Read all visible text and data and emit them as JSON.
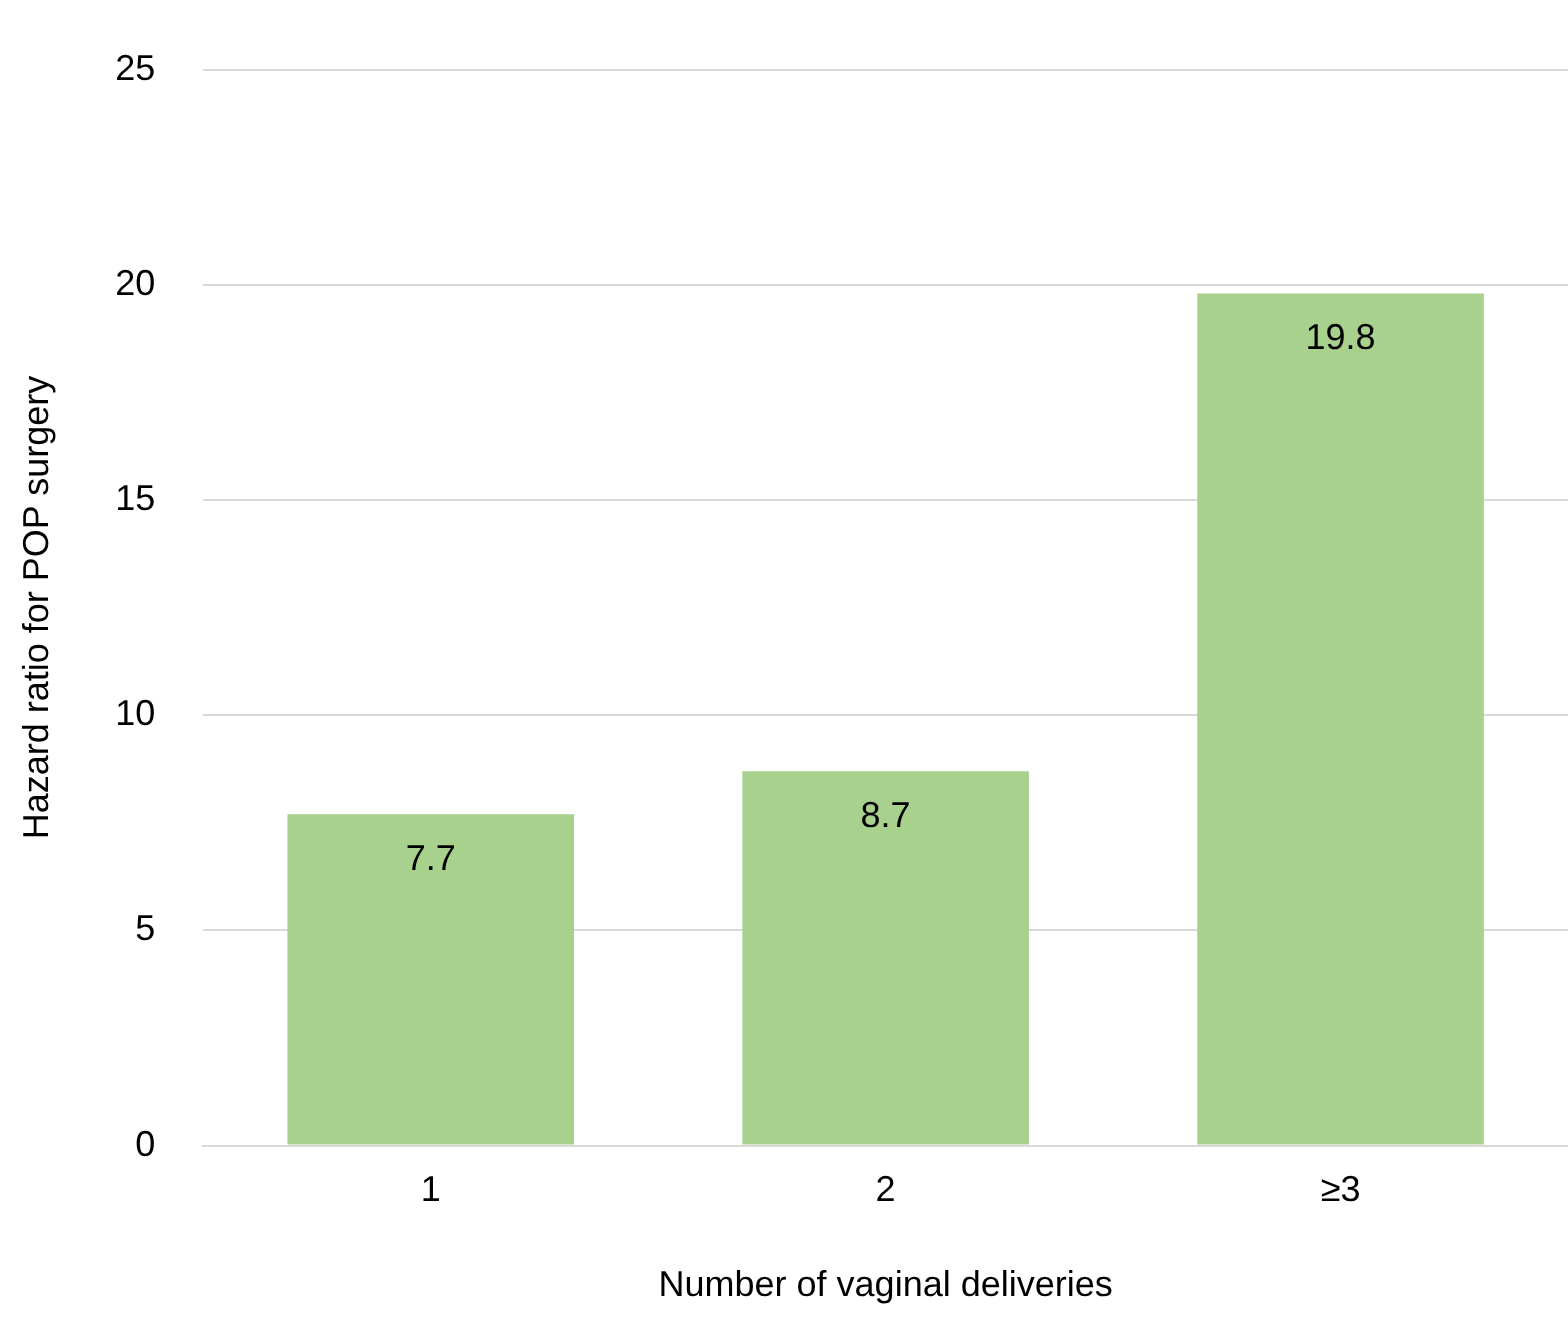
{
  "chart_data": {
    "type": "bar",
    "xlabel": "Number of vaginal deliveries",
    "ylabel": "Hazard ratio for POP surgery",
    "categories": [
      "1",
      "2",
      "≥3"
    ],
    "values": [
      7.7,
      8.7,
      19.8
    ],
    "color": "#a9d18e",
    "ylim": [
      0,
      25
    ],
    "yticks": [
      0,
      5,
      10,
      15,
      20,
      25
    ],
    "grid": "y",
    "data_labels": true,
    "legend": false
  }
}
